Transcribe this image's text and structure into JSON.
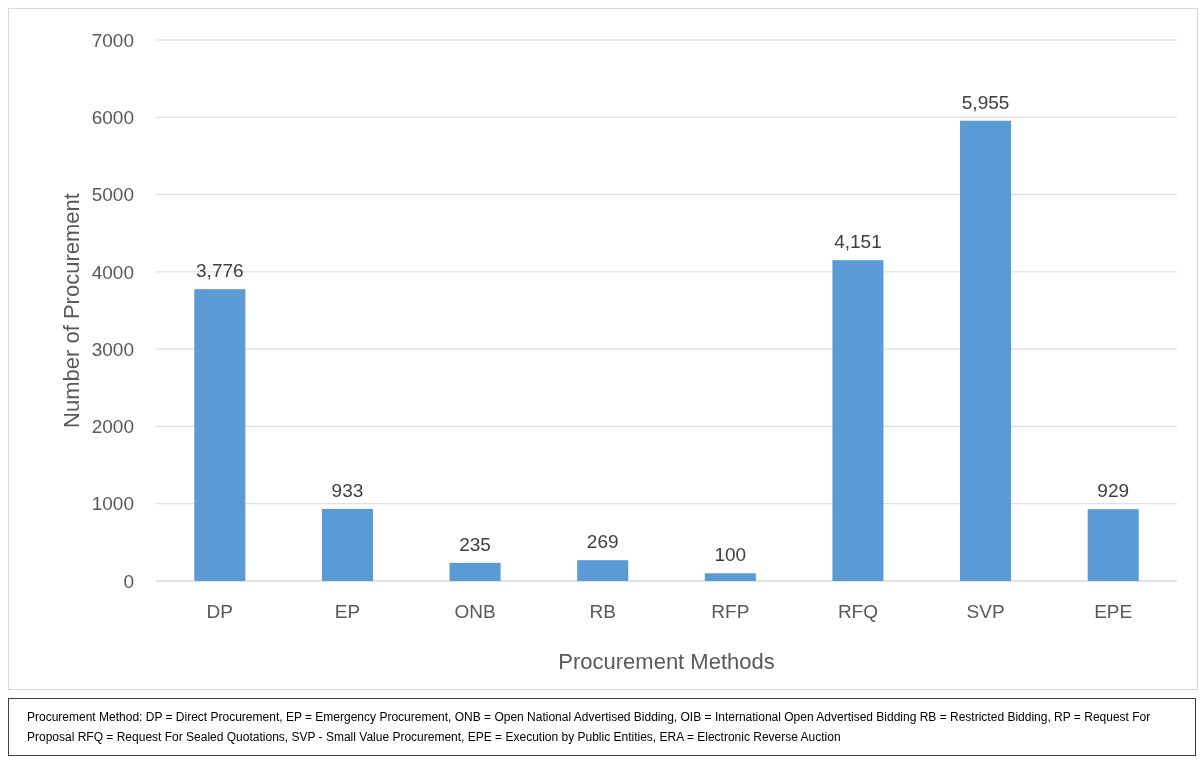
{
  "chart_data": {
    "type": "bar",
    "xlabel": "Procurement Methods",
    "ylabel": "Number of Procurement",
    "categories": [
      "DP",
      "EP",
      "ONB",
      "RB",
      "RFP",
      "RFQ",
      "SVP",
      "EPE"
    ],
    "values": [
      3776,
      933,
      235,
      269,
      100,
      4151,
      5955,
      929
    ],
    "value_labels": [
      "3,776",
      "933",
      "235",
      "269",
      "100",
      "4,151",
      "5,955",
      "929"
    ],
    "color": "#5b9bd5",
    "ylim": [
      0,
      7000
    ],
    "yticks": [
      0,
      1000,
      2000,
      3000,
      4000,
      5000,
      6000,
      7000
    ],
    "grid": "y",
    "annotations": [
      "Procurement Method: DP = Direct Procurement, EP = Emergency Procurement, ONB = Open National Advertised Bidding, OIB = International Open Advertised Bidding RB = Restricted Bidding, RP = Request For Proposal RFQ = Request For Sealed Quotations, SVP - Small Value Procurement, EPE = Execution by Public Entities, ERA = Electronic Reverse Auction"
    ]
  }
}
